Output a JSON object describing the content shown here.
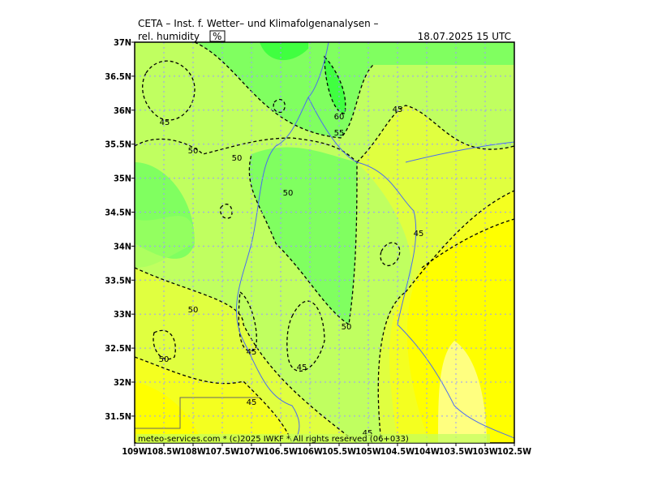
{
  "header": {
    "title": "CETA – Inst. f. Wetter– und Klimafolgenanalysen –",
    "parameter": "rel. humidity",
    "unit": "%",
    "valid_time": "18.07.2025 15 UTC"
  },
  "footer": {
    "copyright": "meteo-services.com * (c)2025 IWKF * All rights reserved (06+033)"
  },
  "lat_labels": [
    "37N",
    "36.5N",
    "36N",
    "35.5N",
    "35N",
    "34.5N",
    "34N",
    "33.5N",
    "33N",
    "32.5N",
    "32N",
    "31.5N"
  ],
  "lon_labels": [
    "109W",
    "108.5W",
    "108W",
    "107.5W",
    "107W",
    "106.5W",
    "106W",
    "105.5W",
    "105W",
    "104.5W",
    "104W",
    "103.5W",
    "103W",
    "102.5W"
  ],
  "contour_labels": [
    "45",
    "50",
    "50",
    "50",
    "60",
    "55",
    "45",
    "45",
    "50",
    "50",
    "45",
    "45",
    "50",
    "45",
    "45"
  ]
}
